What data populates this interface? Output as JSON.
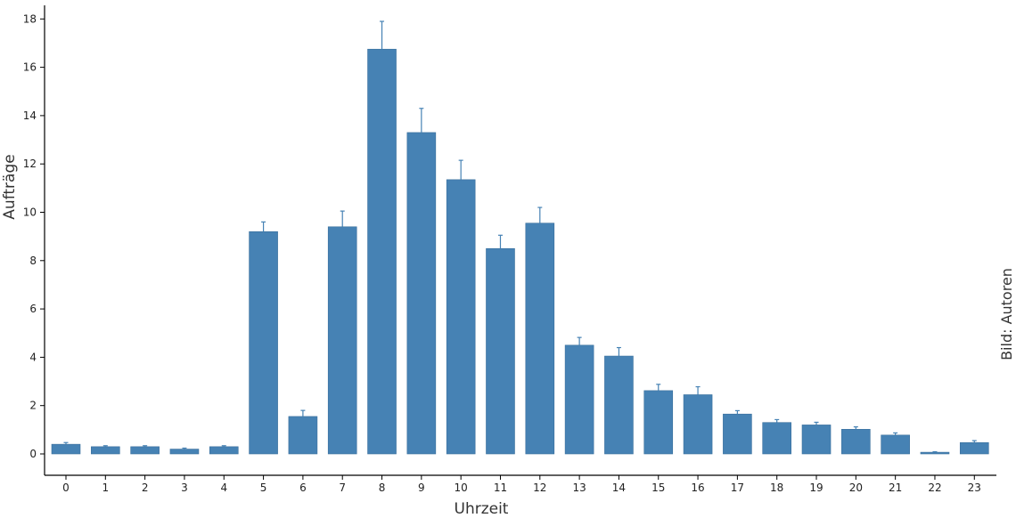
{
  "chart_data": {
    "type": "bar",
    "categories": [
      "0",
      "1",
      "2",
      "3",
      "4",
      "5",
      "6",
      "7",
      "8",
      "9",
      "10",
      "11",
      "12",
      "13",
      "14",
      "15",
      "16",
      "17",
      "18",
      "19",
      "20",
      "21",
      "22",
      "23"
    ],
    "values": [
      0.4,
      0.3,
      0.3,
      0.2,
      0.3,
      9.2,
      1.55,
      9.4,
      16.75,
      13.3,
      11.35,
      8.5,
      9.55,
      4.5,
      4.05,
      2.62,
      2.45,
      1.65,
      1.3,
      1.2,
      1.02,
      0.78,
      0.07,
      0.47
    ],
    "error_upper": [
      0.47,
      0.34,
      0.34,
      0.24,
      0.34,
      9.6,
      1.8,
      10.05,
      17.9,
      14.3,
      12.15,
      9.05,
      10.2,
      4.82,
      4.4,
      2.88,
      2.78,
      1.79,
      1.42,
      1.31,
      1.12,
      0.87,
      0.09,
      0.55
    ],
    "xlabel": "Uhrzeit",
    "ylabel": "Aufträge",
    "ylim": [
      0,
      18.5
    ],
    "yticks": [
      0,
      2,
      4,
      6,
      8,
      10,
      12,
      14,
      16,
      18
    ],
    "grid": false,
    "bar_color": "#4682b4",
    "error_bar_color": "#4682b4"
  },
  "credit": "Bild: Autoren"
}
